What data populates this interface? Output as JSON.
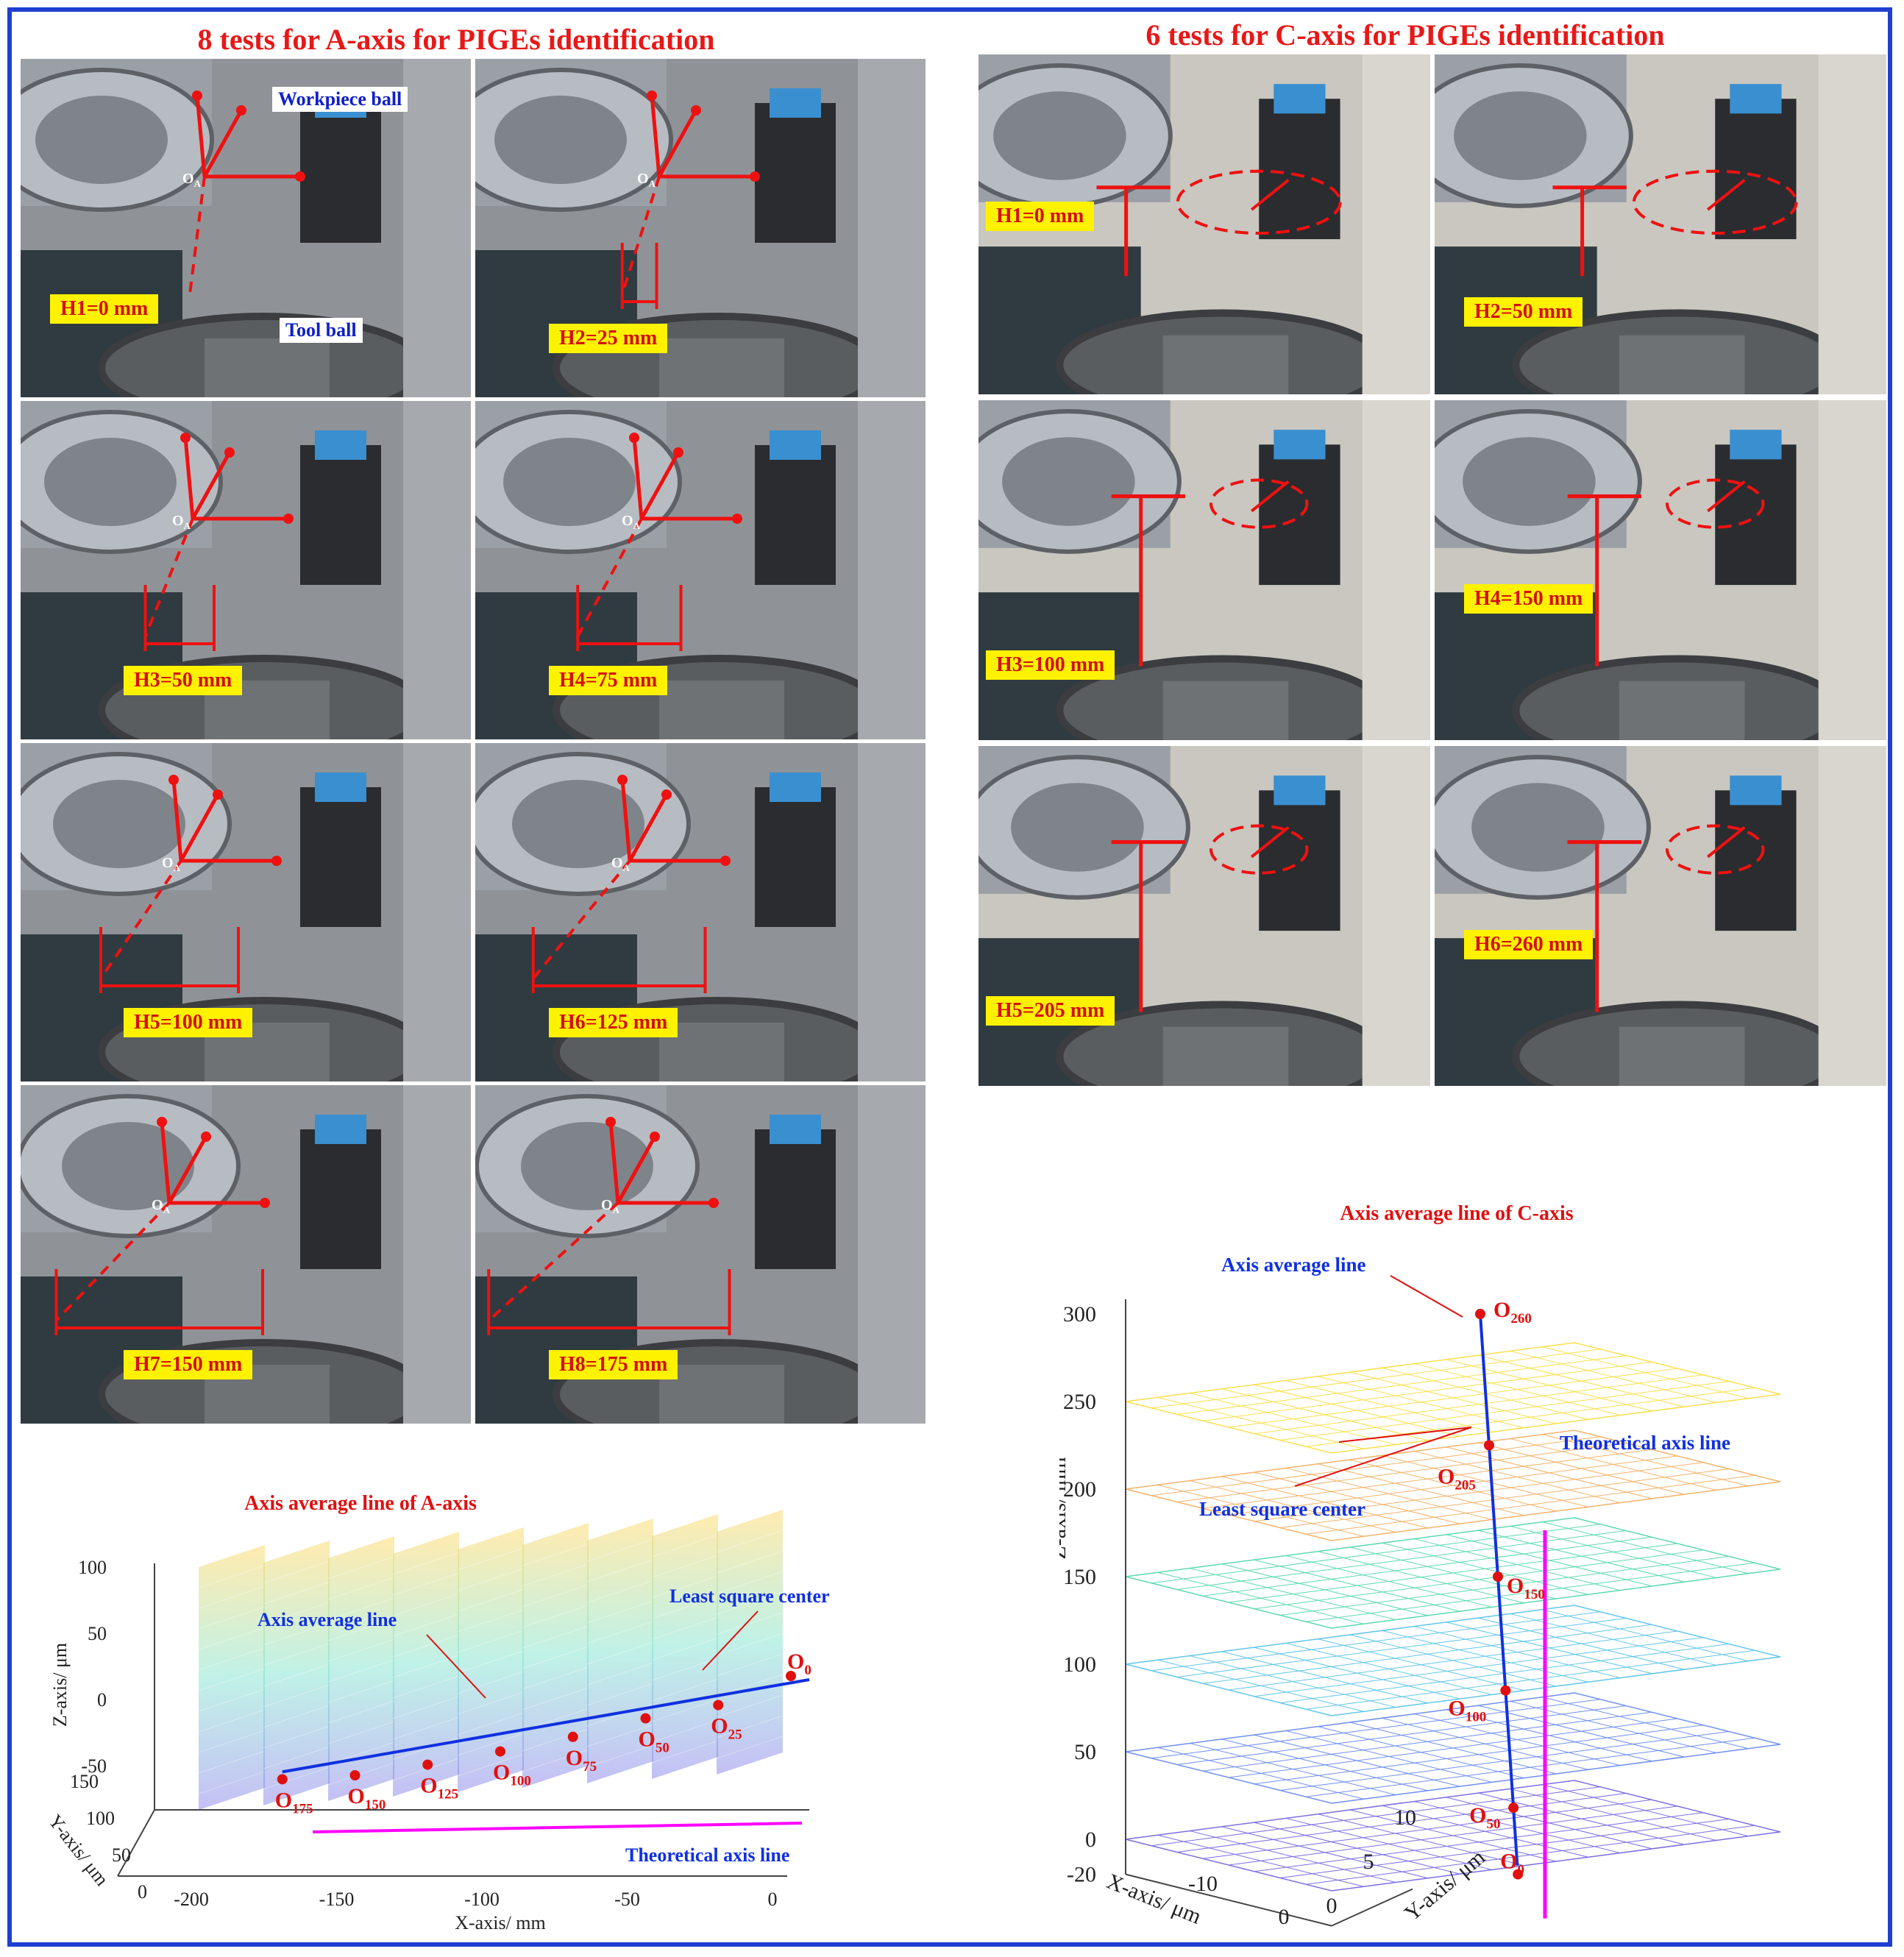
{
  "section_a": {
    "title": "8 tests for A-axis for PIGEs identification",
    "workpiece_ball": "Workpiece ball",
    "tool_ball": "Tool ball",
    "origin_label": "O",
    "origin_sub": "A",
    "tests": [
      "H1=0 mm",
      "H2=25 mm",
      "H3=50 mm",
      "H4=75 mm",
      "H5=100 mm",
      "H6=125 mm",
      "H7=150 mm",
      "H8=175 mm"
    ]
  },
  "section_c": {
    "title": "6 tests for C-axis for PIGEs identification",
    "tests": [
      "H1=0 mm",
      "H2=50 mm",
      "H3=100 mm",
      "H4=150 mm",
      "H5=205 mm",
      "H6=260 mm"
    ]
  },
  "colors": {
    "frame": "#1f3fd0",
    "title_red": "#e81818",
    "label_bg": "#fff200",
    "avg_line": "#1030e0",
    "theory_line": "#ff00ff",
    "point": "#e01010"
  },
  "chart_data": [
    {
      "type": "3d-line",
      "title": "Axis average line of A-axis",
      "xlabel": "X-axis/ mm",
      "ylabel": "Y-axis/ μm",
      "zlabel": "Z-axis/ μm",
      "x_ticks": [
        "-200",
        "-150",
        "-100",
        "-50",
        "0"
      ],
      "y_ticks": [
        "0",
        "50",
        "100",
        "150"
      ],
      "z_ticks": [
        "-50",
        "0",
        "50",
        "100"
      ],
      "annotations": {
        "avg": "Axis average line",
        "lsq": "Least square center",
        "theory": "Theoretical axis line"
      },
      "points": [
        {
          "name": "O",
          "sub": "0",
          "x": 0,
          "z": 40
        },
        {
          "name": "O",
          "sub": "25",
          "x": -25,
          "z": 18
        },
        {
          "name": "O",
          "sub": "50",
          "x": -50,
          "z": 8
        },
        {
          "name": "O",
          "sub": "75",
          "x": -75,
          "z": -6
        },
        {
          "name": "O",
          "sub": "100",
          "x": -100,
          "z": -17
        },
        {
          "name": "O",
          "sub": "125",
          "x": -125,
          "z": -27
        },
        {
          "name": "O",
          "sub": "150",
          "x": -150,
          "z": -35
        },
        {
          "name": "O",
          "sub": "175",
          "x": -175,
          "z": -38
        }
      ],
      "grid": true
    },
    {
      "type": "3d-line",
      "title": "Axis average line of C-axis",
      "xlabel": "X-axis/ μm",
      "ylabel": "Y-axis/ μm",
      "zlabel": "Z-axis/ mm",
      "x_ticks": [
        "-10",
        "0"
      ],
      "y_ticks": [
        "0",
        "5",
        "10"
      ],
      "z_ticks": [
        "-20",
        "0",
        "50",
        "100",
        "150",
        "200",
        "250",
        "300"
      ],
      "annotations": {
        "avg": "Axis average line",
        "lsq": "Least square center",
        "theory": "Theoretical axis line"
      },
      "points": [
        {
          "name": "O",
          "sub": "0",
          "z": 0
        },
        {
          "name": "O",
          "sub": "50",
          "z": 50
        },
        {
          "name": "O",
          "sub": "100",
          "z": 100
        },
        {
          "name": "O",
          "sub": "150",
          "z": 150
        },
        {
          "name": "O",
          "sub": "205",
          "z": 205
        },
        {
          "name": "O",
          "sub": "260",
          "z": 260
        }
      ],
      "grid": true
    }
  ]
}
